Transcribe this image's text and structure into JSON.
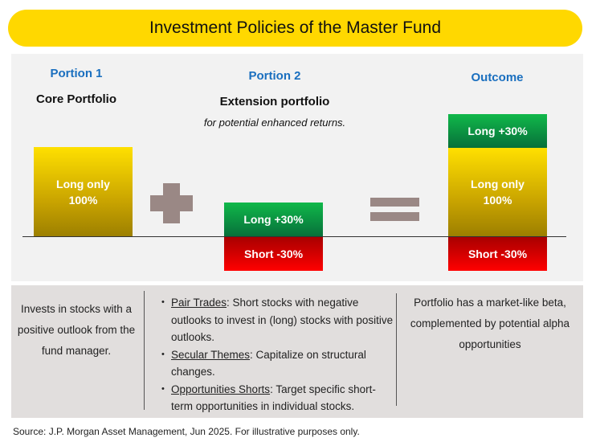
{
  "title": "Investment Policies of the Master Fund",
  "portion1": {
    "header": "Portion 1",
    "subtitle": "Core Portfolio",
    "bar": {
      "line1": "Long only",
      "line2": "100%"
    }
  },
  "portion2": {
    "header": "Portion 2",
    "subtitle": "Extension portfolio",
    "note": "for potential enhanced returns.",
    "long": "Long +30%",
    "short": "Short -30%"
  },
  "outcome": {
    "header": "Outcome",
    "long": "Long +30%",
    "core": {
      "line1": "Long only",
      "line2": "100%"
    },
    "short": "Short -30%"
  },
  "descriptions": {
    "col1": "Invests in stocks with a positive outlook from the fund manager.",
    "col2": [
      {
        "term": "Pair Trades",
        "text": ": Short stocks with negative outlooks to invest in (long) stocks with positive outlooks."
      },
      {
        "term": "Secular Themes",
        "text": ": Capitalize on structural changes."
      },
      {
        "term": "Opportunities Shorts",
        "text": ": Target specific short-term opportunities in individual stocks."
      }
    ],
    "col3": "Portfolio has a market-like beta, complemented by potential alpha opportunities"
  },
  "source": "Source: J.P. Morgan Asset Management, Jun 2025. For illustrative purposes only."
}
